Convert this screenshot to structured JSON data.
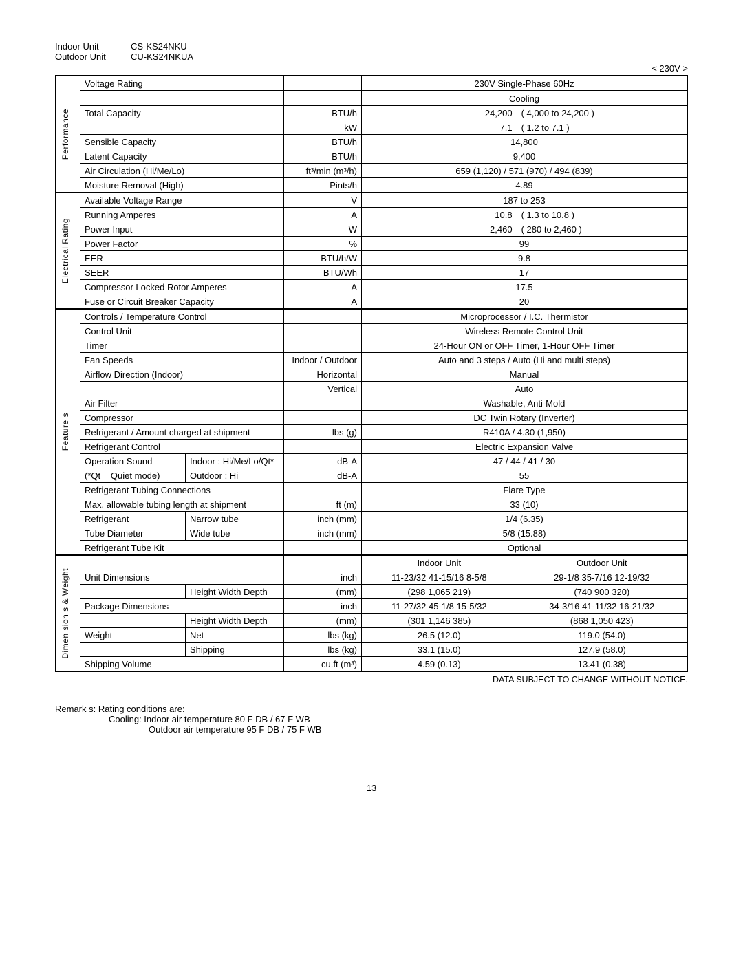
{
  "header": {
    "indoor_label": "Indoor Unit",
    "indoor_model": "CS-KS24NKU",
    "outdoor_label": "Outdoor Unit",
    "outdoor_model": "CU-KS24NKUA",
    "voltage_tag": "< 230V >"
  },
  "rows": {
    "voltage_rating": {
      "label": "Voltage Rating",
      "value": "230V Single-Phase 60Hz"
    },
    "cooling_header": "Cooling",
    "perf_group": "Performance",
    "total_cap_btu": {
      "label": "Total Capacity",
      "unit": "BTU/h",
      "left": "24,200",
      "right": "( 4,000 to 24,200 )"
    },
    "total_cap_kw": {
      "unit": "kW",
      "left": "7.1",
      "right": "( 1.2 to 7.1 )"
    },
    "sensible": {
      "label": "Sensible Capacity",
      "unit": "BTU/h",
      "value": "14,800"
    },
    "latent": {
      "label": "Latent Capacity",
      "unit": "BTU/h",
      "value": "9,400"
    },
    "air_circ": {
      "label": "Air Circulation  (Hi/Me/Lo)",
      "unit": "ft³/min (m³/h)",
      "value": "659 (1,120) / 571 (970) / 494 (839)"
    },
    "moisture": {
      "label": "Moisture Removal (High)",
      "unit": "Pints/h",
      "value": "4.89"
    },
    "elec_group": "Electrical Rating",
    "avr": {
      "label": "Available Voltage Range",
      "unit": "V",
      "value": "187 to 253"
    },
    "amps": {
      "label": "Running Amperes",
      "unit": "A",
      "left": "10.8",
      "right": "( 1.3 to 10.8 )"
    },
    "power": {
      "label": "Power Input",
      "unit": "W",
      "left": "2,460",
      "right": "( 280 to 2,460 )"
    },
    "pf": {
      "label": "Power Factor",
      "unit": "%",
      "value": "99"
    },
    "eer": {
      "label": "EER",
      "unit": "BTU/h/W",
      "value": "9.8"
    },
    "seer": {
      "label": "SEER",
      "unit": "BTU/Wh",
      "value": "17"
    },
    "lra": {
      "label": "Compressor Locked Rotor Amperes",
      "unit": "A",
      "value": "17.5"
    },
    "fuse": {
      "label": "Fuse or Circuit Breaker Capacity",
      "unit": "A",
      "value": "20"
    },
    "feat_group": "Feature s",
    "controls": {
      "label": "Controls / Temperature Control",
      "value": "Microprocessor / I.C. Thermistor"
    },
    "ctrl_unit": {
      "label": "Control Unit",
      "value": "Wireless Remote Control Unit"
    },
    "timer": {
      "label": "Timer",
      "value": "24-Hour ON or OFF Timer, 1-Hour OFF Timer"
    },
    "fan": {
      "label": "Fan Speeds",
      "unit": "Indoor / Outdoor",
      "value": "Auto and 3 steps / Auto (Hi and multi steps)"
    },
    "airflow_h": {
      "label": "Airflow Direction (Indoor)",
      "unit": "Horizontal",
      "value": "Manual"
    },
    "airflow_v": {
      "unit": "Vertical",
      "value": "Auto"
    },
    "filter": {
      "label": "Air Filter",
      "value": "Washable, Anti-Mold"
    },
    "compressor": {
      "label": "Compressor",
      "value": "DC Twin Rotary (Inverter)"
    },
    "refrig": {
      "label": "Refrigerant / Amount charged at shipment",
      "unit": "lbs (g)",
      "value": "R410A / 4.30 (1,950)"
    },
    "refctrl": {
      "label": "Refrigerant Control",
      "value": "Electric Expansion Valve"
    },
    "sound_in": {
      "label": "Operation Sound",
      "label2": "Indoor : Hi/Me/Lo/Qt*",
      "unit": "dB-A",
      "value": "47 / 44 / 41 / 30"
    },
    "sound_out": {
      "label": "(*Qt = Quiet mode)",
      "label2": "Outdoor : Hi",
      "unit": "dB-A",
      "value": "55"
    },
    "tubing": {
      "label": "Refrigerant Tubing Connections",
      "value": "Flare Type"
    },
    "maxtube": {
      "label": "Max. allowable tubing length at shipment",
      "unit": "ft (m)",
      "value": "33 (10)"
    },
    "tube_n": {
      "label": "Refrigerant",
      "label2": "Narrow tube",
      "unit": "inch (mm)",
      "value": "1/4 (6.35)"
    },
    "tube_w": {
      "label": "Tube Diameter",
      "label2": "Wide tube",
      "unit": "inch (mm)",
      "value": "5/8 (15.88)"
    },
    "tubekit": {
      "label": "Refrigerant Tube Kit",
      "value": "Optional"
    },
    "dim_group": "Dimen sion s & Weight",
    "indoor_hdr": "Indoor Unit",
    "outdoor_hdr": "Outdoor Unit",
    "unitdim_in": {
      "label": "Unit Dimensions",
      "unit": "inch",
      "in": "11-23/32  41-15/16  8-5/8",
      "out": "29-1/8  35-7/16  12-19/32"
    },
    "unitdim_mm": {
      "label2": "Height  Width  Depth",
      "unit": "(mm)",
      "in": "(298  1,065  219)",
      "out": "(740  900  320)"
    },
    "pkgdim_in": {
      "label": "Package Dimensions",
      "unit": "inch",
      "in": "11-27/32  45-1/8  15-5/32",
      "out": "34-3/16  41-11/32  16-21/32"
    },
    "pkgdim_mm": {
      "label2": "Height  Width  Depth",
      "unit": "(mm)",
      "in": "(301  1,146  385)",
      "out": "(868  1,050  423)"
    },
    "weight_net": {
      "label": "Weight",
      "label2": "Net",
      "unit": "lbs (kg)",
      "in": "26.5 (12.0)",
      "out": "119.0 (54.0)"
    },
    "weight_ship": {
      "label2": "Shipping",
      "unit": "lbs (kg)",
      "in": "33.1 (15.0)",
      "out": "127.9 (58.0)"
    },
    "shipvol": {
      "label": "Shipping Volume",
      "unit": "cu.ft (m³)",
      "in": "4.59 (0.13)",
      "out": "13.41 (0.38)"
    }
  },
  "footer": {
    "notice": "DATA SUBJECT TO CHANGE WITHOUT NOTICE.",
    "remarks_lead": "Remark s:  Rating conditions are:",
    "remarks_1": "Cooling: Indoor air temperature    80  F DB / 67  F WB",
    "remarks_2": "Outdoor air temperature 95  F DB / 75  F WB",
    "page": "13"
  }
}
